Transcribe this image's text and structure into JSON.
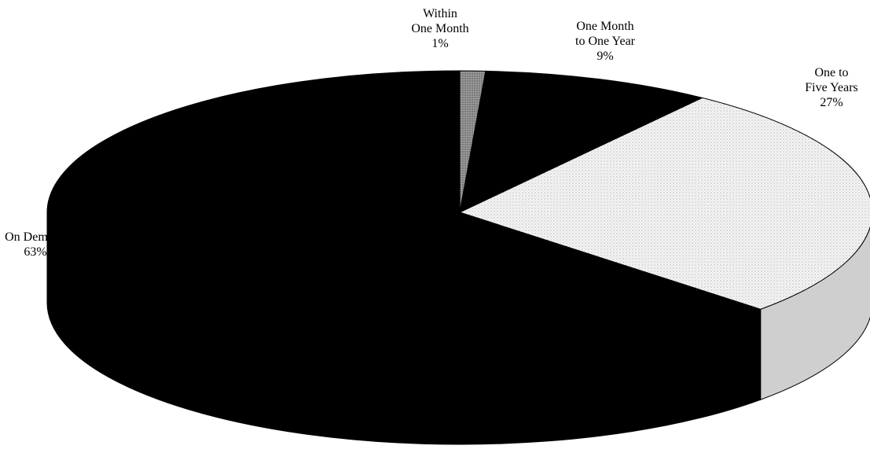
{
  "chart_data": {
    "type": "pie",
    "title": "",
    "categories": [
      "Within One Month",
      "One Month to One Year",
      "One to Five Years",
      "On Demand"
    ],
    "values": [
      1,
      9,
      27,
      63
    ],
    "series": [
      {
        "values": [
          1,
          9,
          27,
          63
        ]
      }
    ],
    "labels": [
      {
        "lines": [
          "Within",
          "One Month"
        ],
        "percent": "1%"
      },
      {
        "lines": [
          "One Month",
          "to One Year"
        ],
        "percent": "9%"
      },
      {
        "lines": [
          "One to",
          "Five Years"
        ],
        "percent": "27%"
      },
      {
        "lines": [
          "On Demand"
        ],
        "percent": "63%"
      }
    ],
    "colors": [
      "#a8a8a8",
      "#000000",
      "#f2f2f2",
      "#000000"
    ],
    "style": "3d-pie",
    "legend": "none"
  }
}
